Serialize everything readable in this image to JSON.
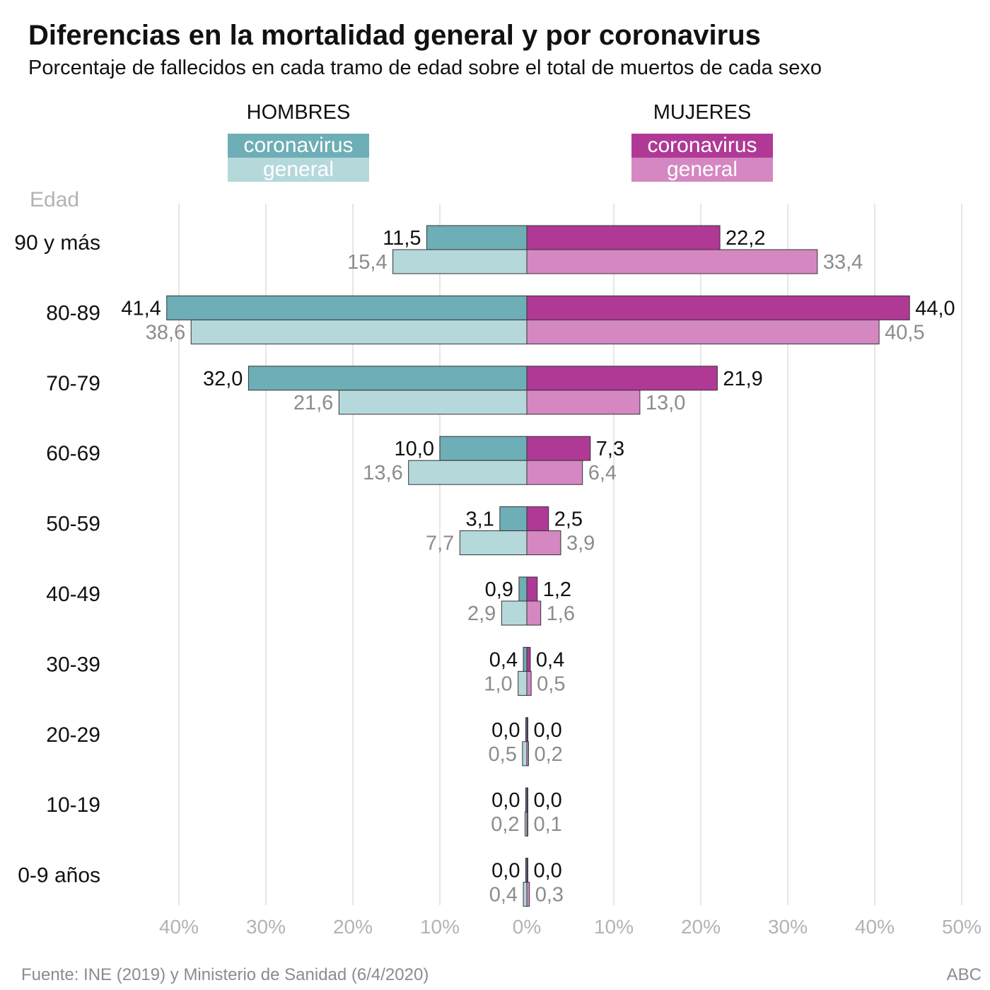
{
  "title": "Diferencias en la mortalidad general y por coronavirus",
  "subtitle": "Porcentaje de fallecidos en cada tramo de edad sobre el total de muertos de cada sexo",
  "legend": {
    "hombres": "HOMBRES",
    "mujeres": "MUJERES",
    "coronavirus": "coronavirus",
    "general": "general"
  },
  "colors": {
    "men_coronavirus": "#6eaeb6",
    "men_general": "#b5d8db",
    "women_coronavirus": "#b03996",
    "women_general": "#d587c2"
  },
  "source": "Fuente: INE (2019) y Ministerio de Sanidad (6/4/2020)",
  "brand": "ABC",
  "chart_data": {
    "type": "bar",
    "orientation": "horizontal-butterfly",
    "y_label": "Edad",
    "categories": [
      "90 y más",
      "80-89",
      "70-79",
      "60-69",
      "50-59",
      "40-49",
      "30-39",
      "20-29",
      "10-19",
      "0-9 años"
    ],
    "x_ticks_left": [
      "40%",
      "30%",
      "20%",
      "10%"
    ],
    "x_ticks_right": [
      "0%",
      "10%",
      "20%",
      "30%",
      "40%",
      "50%"
    ],
    "x_range": [
      -40,
      50
    ],
    "grid": true,
    "series": [
      {
        "name": "HOMBRES coronavirus",
        "side": "left",
        "values": [
          11.5,
          41.4,
          32.0,
          10.0,
          3.1,
          0.9,
          0.4,
          0.0,
          0.0,
          0.0
        ],
        "labels": [
          "11,5",
          "41,4",
          "32,0",
          "10,0",
          "3,1",
          "0,9",
          "0,4",
          "0,0",
          "0,0",
          "0,0"
        ]
      },
      {
        "name": "HOMBRES general",
        "side": "left",
        "values": [
          15.4,
          38.6,
          21.6,
          13.6,
          7.7,
          2.9,
          1.0,
          0.5,
          0.2,
          0.4
        ],
        "labels": [
          "15,4",
          "38,6",
          "21,6",
          "13,6",
          "7,7",
          "2,9",
          "1,0",
          "0,5",
          "0,2",
          "0,4"
        ]
      },
      {
        "name": "MUJERES coronavirus",
        "side": "right",
        "values": [
          22.2,
          44.0,
          21.9,
          7.3,
          2.5,
          1.2,
          0.4,
          0.0,
          0.0,
          0.0
        ],
        "labels": [
          "22,2",
          "44,0",
          "21,9",
          "7,3",
          "2,5",
          "1,2",
          "0,4",
          "0,0",
          "0,0",
          "0,0"
        ]
      },
      {
        "name": "MUJERES general",
        "side": "right",
        "values": [
          33.4,
          40.5,
          13.0,
          6.4,
          3.9,
          1.6,
          0.5,
          0.2,
          0.1,
          0.3
        ],
        "labels": [
          "33,4",
          "40,5",
          "13,0",
          "6,4",
          "3,9",
          "1,6",
          "0,5",
          "0,2",
          "0,1",
          "0,3"
        ]
      }
    ]
  }
}
